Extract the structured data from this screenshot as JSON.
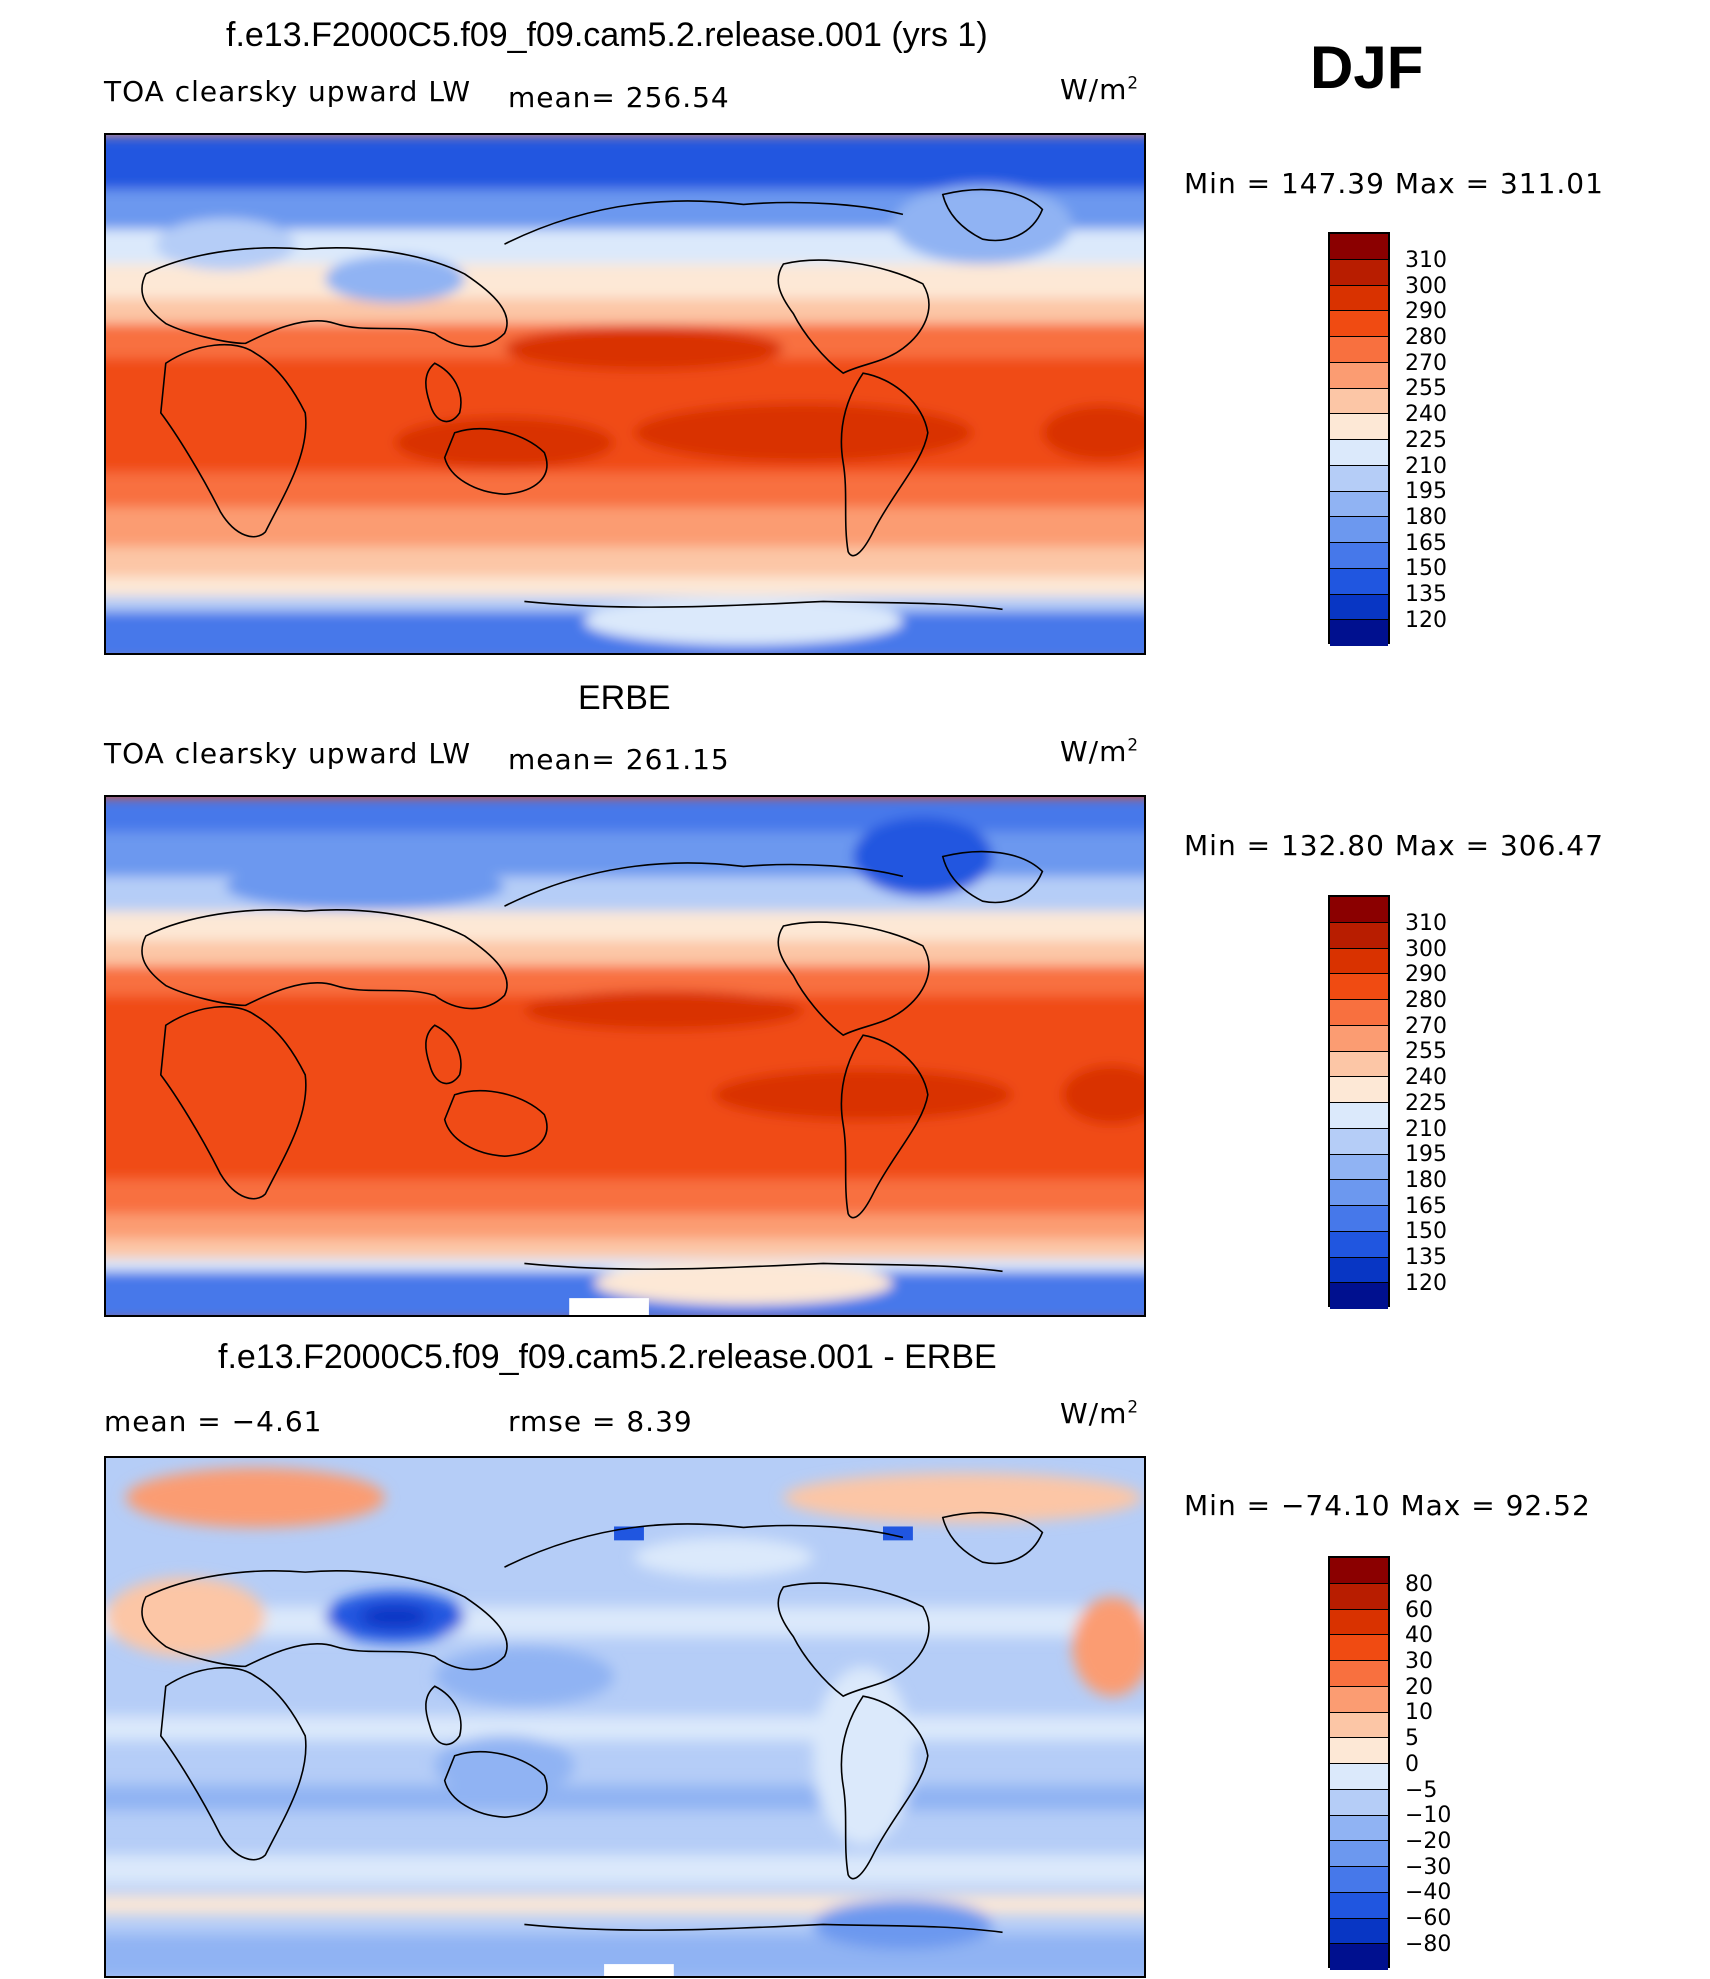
{
  "season": "DJF",
  "units_base": "W/m",
  "units_exp": "2",
  "panels": [
    {
      "title": "f.e13.F2000C5.f09_f09.cam5.2.release.001 (yrs 1)",
      "left_label": "TOA clearsky upward LW",
      "stat_label": "mean= 256.54",
      "minmax": "Min  =  147.39  Max  =  311.01",
      "kind": "abs"
    },
    {
      "title": "ERBE",
      "left_label": "TOA clearsky upward LW",
      "stat_label": "mean= 261.15",
      "minmax": "Min  =  132.80  Max  =  306.47",
      "kind": "abs"
    },
    {
      "title": "f.e13.F2000C5.f09_f09.cam5.2.release.001 - ERBE",
      "left_label": "mean  =    −4.61",
      "stat_label": "rmse  =     8.39",
      "minmax": "Min  =  −74.10  Max  =    92.52",
      "kind": "diff"
    }
  ],
  "colorbar_abs": {
    "labels": [
      "310",
      "300",
      "290",
      "280",
      "270",
      "255",
      "240",
      "225",
      "210",
      "195",
      "180",
      "165",
      "150",
      "135",
      "120"
    ],
    "colors": [
      "#8b0000",
      "#b81d00",
      "#d93200",
      "#f04b12",
      "#f8703f",
      "#fb9c72",
      "#fcc6a6",
      "#fde8d6",
      "#dbe9fb",
      "#b5cdf7",
      "#90b3f3",
      "#6c98ef",
      "#4678ea",
      "#2056e0",
      "#0836c4",
      "#00108f"
    ]
  },
  "colorbar_diff": {
    "labels": [
      "80",
      "60",
      "40",
      "30",
      "20",
      "10",
      "5",
      "0",
      "−5",
      "−10",
      "−20",
      "−30",
      "−40",
      "−60",
      "−80"
    ],
    "colors": [
      "#8b0000",
      "#b81d00",
      "#d93200",
      "#f04b12",
      "#f8703f",
      "#fb9c72",
      "#fcc6a6",
      "#fde8d6",
      "#dbe9fb",
      "#b5cdf7",
      "#90b3f3",
      "#6c98ef",
      "#4678ea",
      "#2056e0",
      "#0836c4",
      "#00108f"
    ]
  }
}
